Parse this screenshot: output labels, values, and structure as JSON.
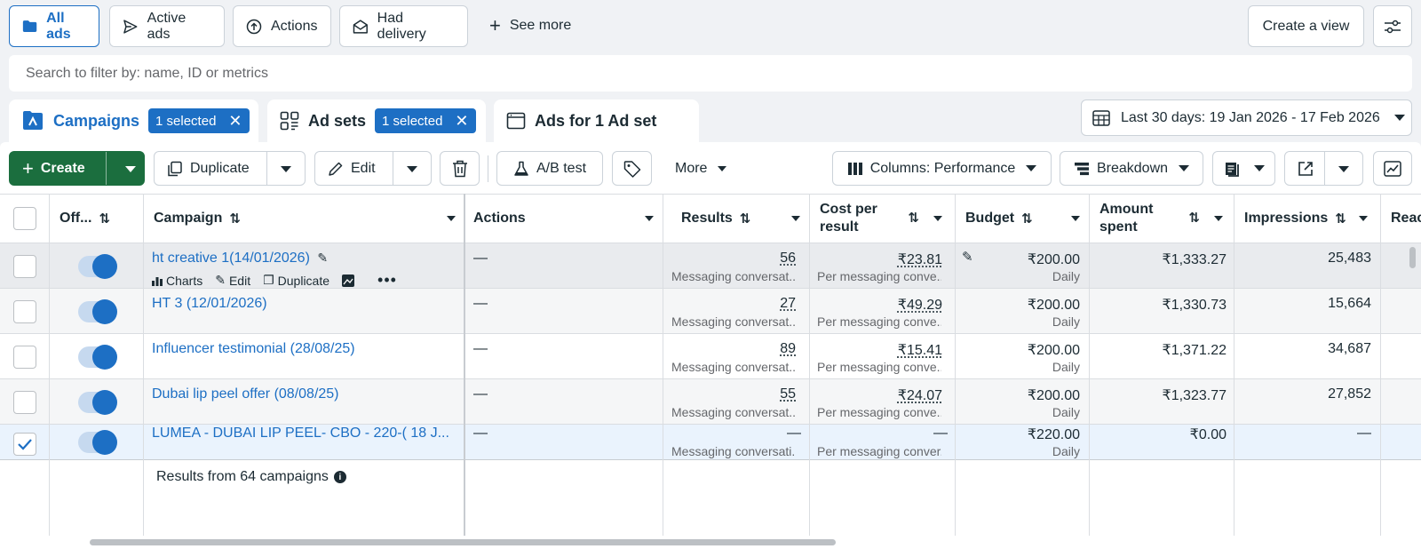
{
  "views": {
    "all_ads": "All ads",
    "active_ads": "Active ads",
    "actions": "Actions",
    "had_delivery": "Had delivery",
    "see_more": "See more",
    "create_view": "Create a view"
  },
  "search": {
    "placeholder": "Search to filter by: name, ID or metrics"
  },
  "tabs": {
    "campaigns": "Campaigns",
    "campaigns_badge": "1 selected",
    "ad_sets": "Ad sets",
    "ad_sets_badge": "1 selected",
    "ads": "Ads for 1 Ad set"
  },
  "date_range": "Last 30 days: 19 Jan 2026 - 17 Feb 2026",
  "toolbar": {
    "create": "Create",
    "duplicate": "Duplicate",
    "edit": "Edit",
    "ab_test": "A/B test",
    "more": "More",
    "columns": "Columns: Performance",
    "breakdown": "Breakdown"
  },
  "columns": {
    "off_on": "Off...",
    "campaign": "Campaign",
    "actions": "Actions",
    "results": "Results",
    "cost_line1": "Cost per",
    "cost_line2": "result",
    "budget": "Budget",
    "amount_line1": "Amount",
    "amount_line2": "spent",
    "impressions": "Impressions",
    "reach": "Reac"
  },
  "row_actions": {
    "charts": "Charts",
    "edit": "Edit",
    "duplicate": "Duplicate"
  },
  "rows": [
    {
      "name": "ht creative 1(14/01/2026)",
      "actions": "—",
      "results": "56",
      "results_sub": "Messaging conversat...",
      "cost": "₹23.81",
      "cost_sub": "Per messaging conve...",
      "budget": "₹200.00",
      "budget_sub": "Daily",
      "spent": "₹1,333.27",
      "impressions": "25,483",
      "checked": false
    },
    {
      "name": "HT 3 (12/01/2026)",
      "actions": "—",
      "results": "27",
      "results_sub": "Messaging conversat...",
      "cost": "₹49.29",
      "cost_sub": "Per messaging conve...",
      "budget": "₹200.00",
      "budget_sub": "Daily",
      "spent": "₹1,330.73",
      "impressions": "15,664",
      "checked": false
    },
    {
      "name": "Influencer testimonial (28/08/25)",
      "actions": "—",
      "results": "89",
      "results_sub": "Messaging conversat...",
      "cost": "₹15.41",
      "cost_sub": "Per messaging conve...",
      "budget": "₹200.00",
      "budget_sub": "Daily",
      "spent": "₹1,371.22",
      "impressions": "34,687",
      "checked": false
    },
    {
      "name": "Dubai lip peel offer (08/08/25)",
      "actions": "—",
      "results": "55",
      "results_sub": "Messaging conversat...",
      "cost": "₹24.07",
      "cost_sub": "Per messaging conve...",
      "budget": "₹200.00",
      "budget_sub": "Daily",
      "spent": "₹1,323.77",
      "impressions": "27,852",
      "checked": false
    },
    {
      "name": "LUMEA - DUBAI LIP PEEL- CBO - 220-( 18 J...",
      "actions": "—",
      "results": "—",
      "results_sub": "Messaging conversati...",
      "cost": "—",
      "cost_sub": "Per messaging conver...",
      "budget": "₹220.00",
      "budget_sub": "Daily",
      "spent": "₹0.00",
      "impressions": "—",
      "checked": true
    }
  ],
  "footer": {
    "results_text": "Results from 64 campaigns"
  }
}
